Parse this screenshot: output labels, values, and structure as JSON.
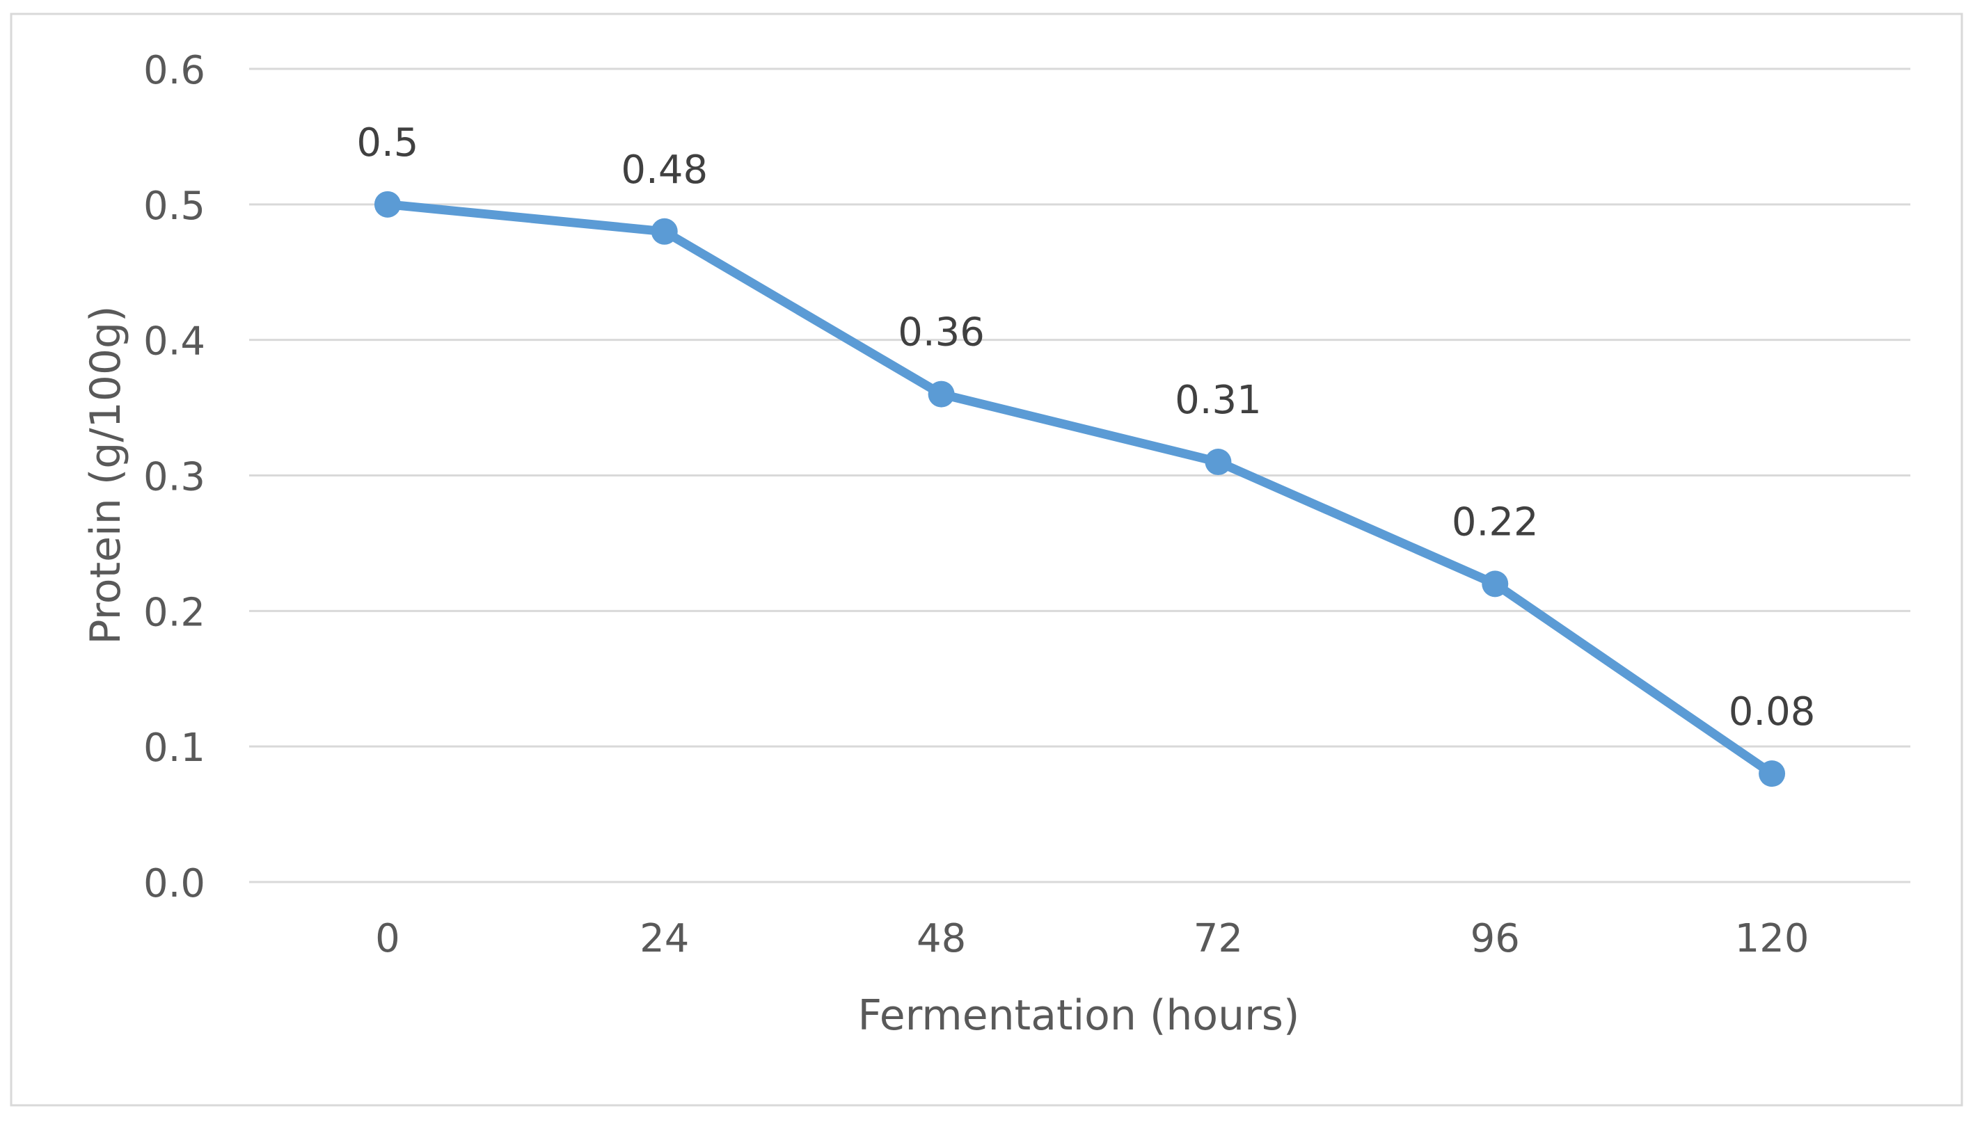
{
  "colors": {
    "series": "#5b9bd5",
    "gridline": "#d9d9d9",
    "text": "#595959",
    "label_text": "#404040",
    "border": "#d9d9d9"
  },
  "chart_data": {
    "type": "line",
    "title": "",
    "xlabel": "Fermentation (hours)",
    "ylabel": "Protein (g/100g)",
    "categories": [
      "0",
      "24",
      "48",
      "72",
      "96",
      "120"
    ],
    "y_ticks": [
      "0.0",
      "0.1",
      "0.2",
      "0.3",
      "0.4",
      "0.5",
      "0.6"
    ],
    "ylim": [
      0,
      0.6
    ],
    "grid": true,
    "legend": "none",
    "series": [
      {
        "name": "Protein",
        "values": [
          0.5,
          0.48,
          0.36,
          0.31,
          0.22,
          0.08
        ],
        "data_labels": [
          "0.5",
          "0.48",
          "0.36",
          "0.31",
          "0.22",
          "0.08"
        ]
      }
    ]
  }
}
